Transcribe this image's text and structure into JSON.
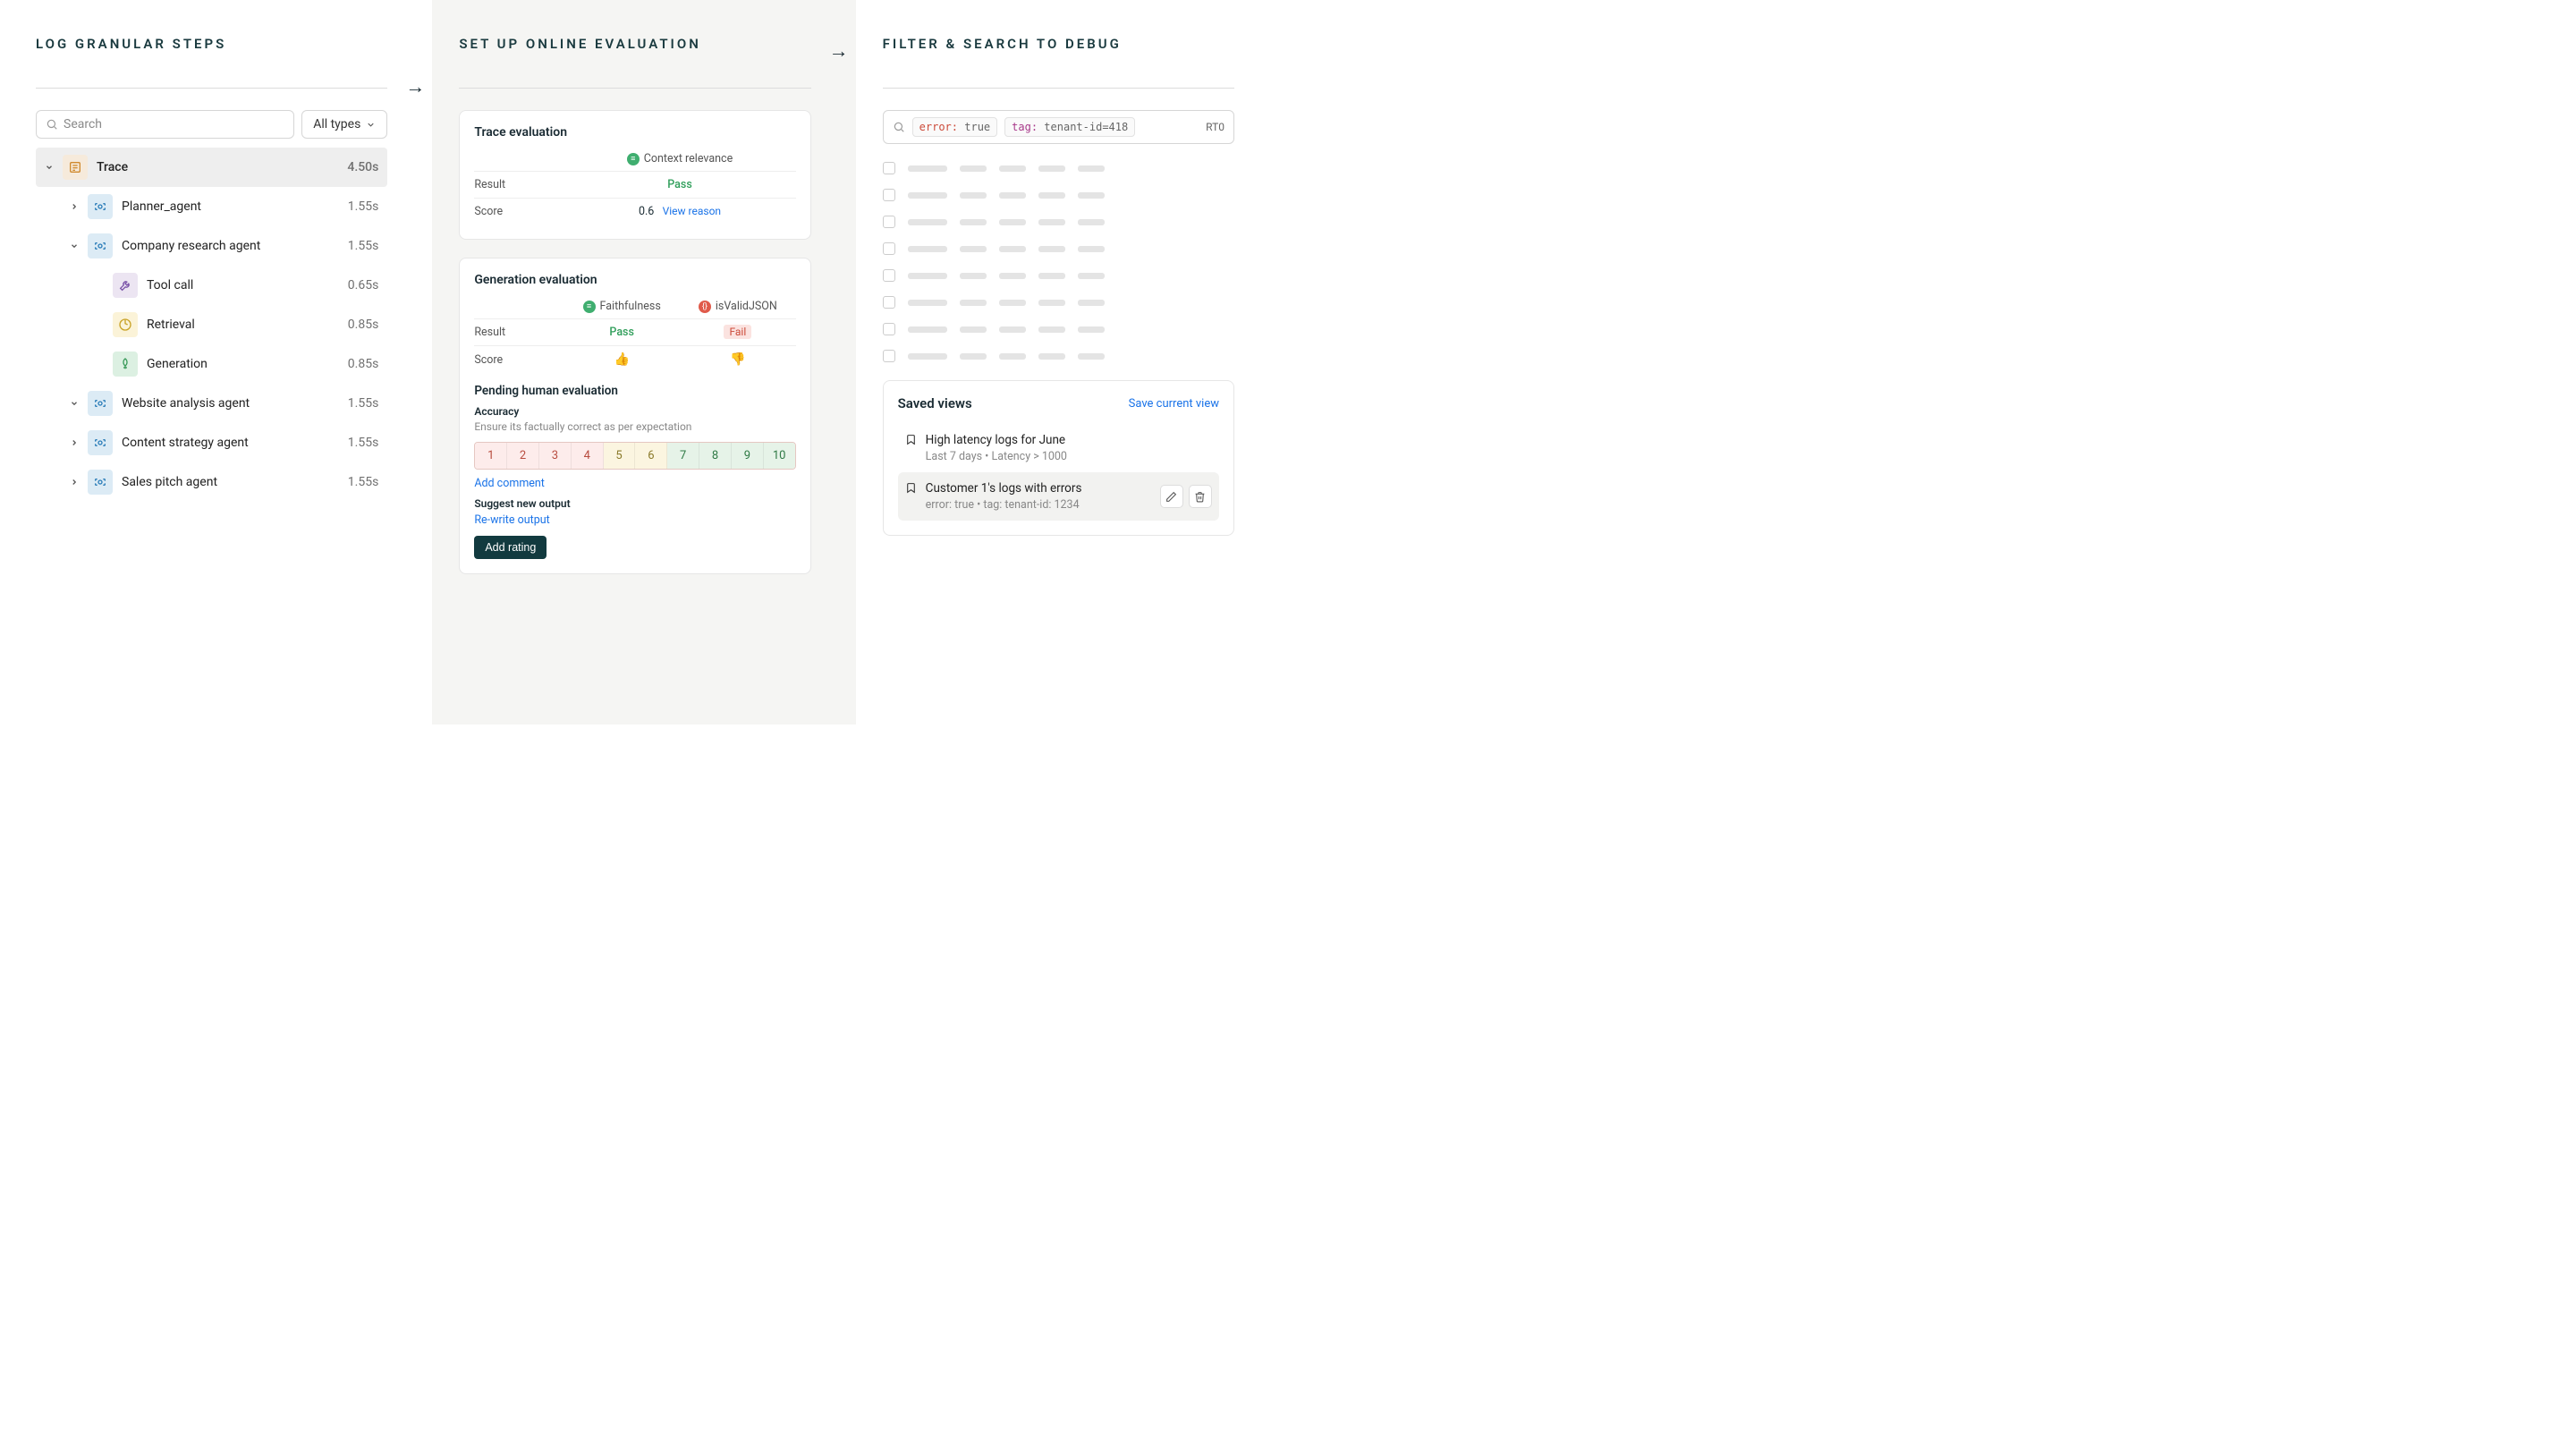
{
  "panel1": {
    "title": "LOG GRANULAR STEPS",
    "search_placeholder": "Search",
    "type_filter": "All types",
    "tree": [
      {
        "depth": 0,
        "chev": "down",
        "icon": "trace",
        "label": "Trace",
        "time": "4.50s",
        "root": true
      },
      {
        "depth": 1,
        "chev": "right",
        "icon": "agent",
        "label": "Planner_agent",
        "time": "1.55s"
      },
      {
        "depth": 1,
        "chev": "down",
        "icon": "agent",
        "label": "Company research agent",
        "time": "1.55s"
      },
      {
        "depth": 2,
        "chev": "",
        "icon": "tool",
        "label": "Tool call",
        "time": "0.65s"
      },
      {
        "depth": 2,
        "chev": "",
        "icon": "retr",
        "label": "Retrieval",
        "time": "0.85s"
      },
      {
        "depth": 2,
        "chev": "",
        "icon": "gen",
        "label": "Generation",
        "time": "0.85s"
      },
      {
        "depth": 1,
        "chev": "down",
        "icon": "agent",
        "label": "Website analysis agent",
        "time": "1.55s"
      },
      {
        "depth": 1,
        "chev": "right",
        "icon": "agent",
        "label": "Content strategy agent",
        "time": "1.55s"
      },
      {
        "depth": 1,
        "chev": "right",
        "icon": "agent",
        "label": "Sales pitch agent",
        "time": "1.55s"
      }
    ]
  },
  "panel2": {
    "title": "SET UP ONLINE EVALUATION",
    "trace_eval": {
      "title": "Trace evaluation",
      "metric": "Context relevance",
      "result_label": "Result",
      "result": "Pass",
      "score_label": "Score",
      "score": "0.6",
      "view_reason": "View reason"
    },
    "gen_eval": {
      "title": "Generation evaluation",
      "metric1": "Faithfulness",
      "metric2": "isValidJSON",
      "result_label": "Result",
      "result1": "Pass",
      "result2": "Fail",
      "score_label": "Score"
    },
    "pending": {
      "title": "Pending human evaluation",
      "accuracy_label": "Accuracy",
      "accuracy_desc": "Ensure its factually correct as per expectation",
      "ratings": [
        "1",
        "2",
        "3",
        "4",
        "5",
        "6",
        "7",
        "8",
        "9",
        "10"
      ],
      "rating_colors": [
        "r-red",
        "r-red",
        "r-red",
        "r-red",
        "r-yel",
        "r-yel",
        "r-grn",
        "r-grn",
        "r-grn",
        "r-grn"
      ],
      "add_comment": "Add comment",
      "suggest_label": "Suggest new output",
      "rewrite": "Re-write output",
      "add_rating": "Add rating"
    }
  },
  "panel3": {
    "title": "FILTER & SEARCH TO DEBUG",
    "chip1_key": "error:",
    "chip1_val": "true",
    "chip2_key": "tag:",
    "chip2_val": "tenant-id=418",
    "rt": "RT0",
    "ph_rows": 8,
    "ph_widths": [
      44,
      30,
      30,
      30,
      30
    ],
    "ph_bar_color": "#e4e4e4",
    "saved": {
      "title": "Saved views",
      "save_link": "Save current view",
      "items": [
        {
          "t": "High latency logs for June",
          "s": "Last 7 days • Latency > 1000",
          "active": false
        },
        {
          "t": "Customer 1's logs with errors",
          "s": "error: true • tag: tenant-id: 1234",
          "active": true
        }
      ]
    }
  },
  "colors": {
    "title_color": "#1a3a3f",
    "pass": "#2f9e5a",
    "fail_bg": "#fbe3e0",
    "fail_fg": "#cc4b3a",
    "link": "#1a73e8",
    "btn_dark": "#123a3f"
  }
}
